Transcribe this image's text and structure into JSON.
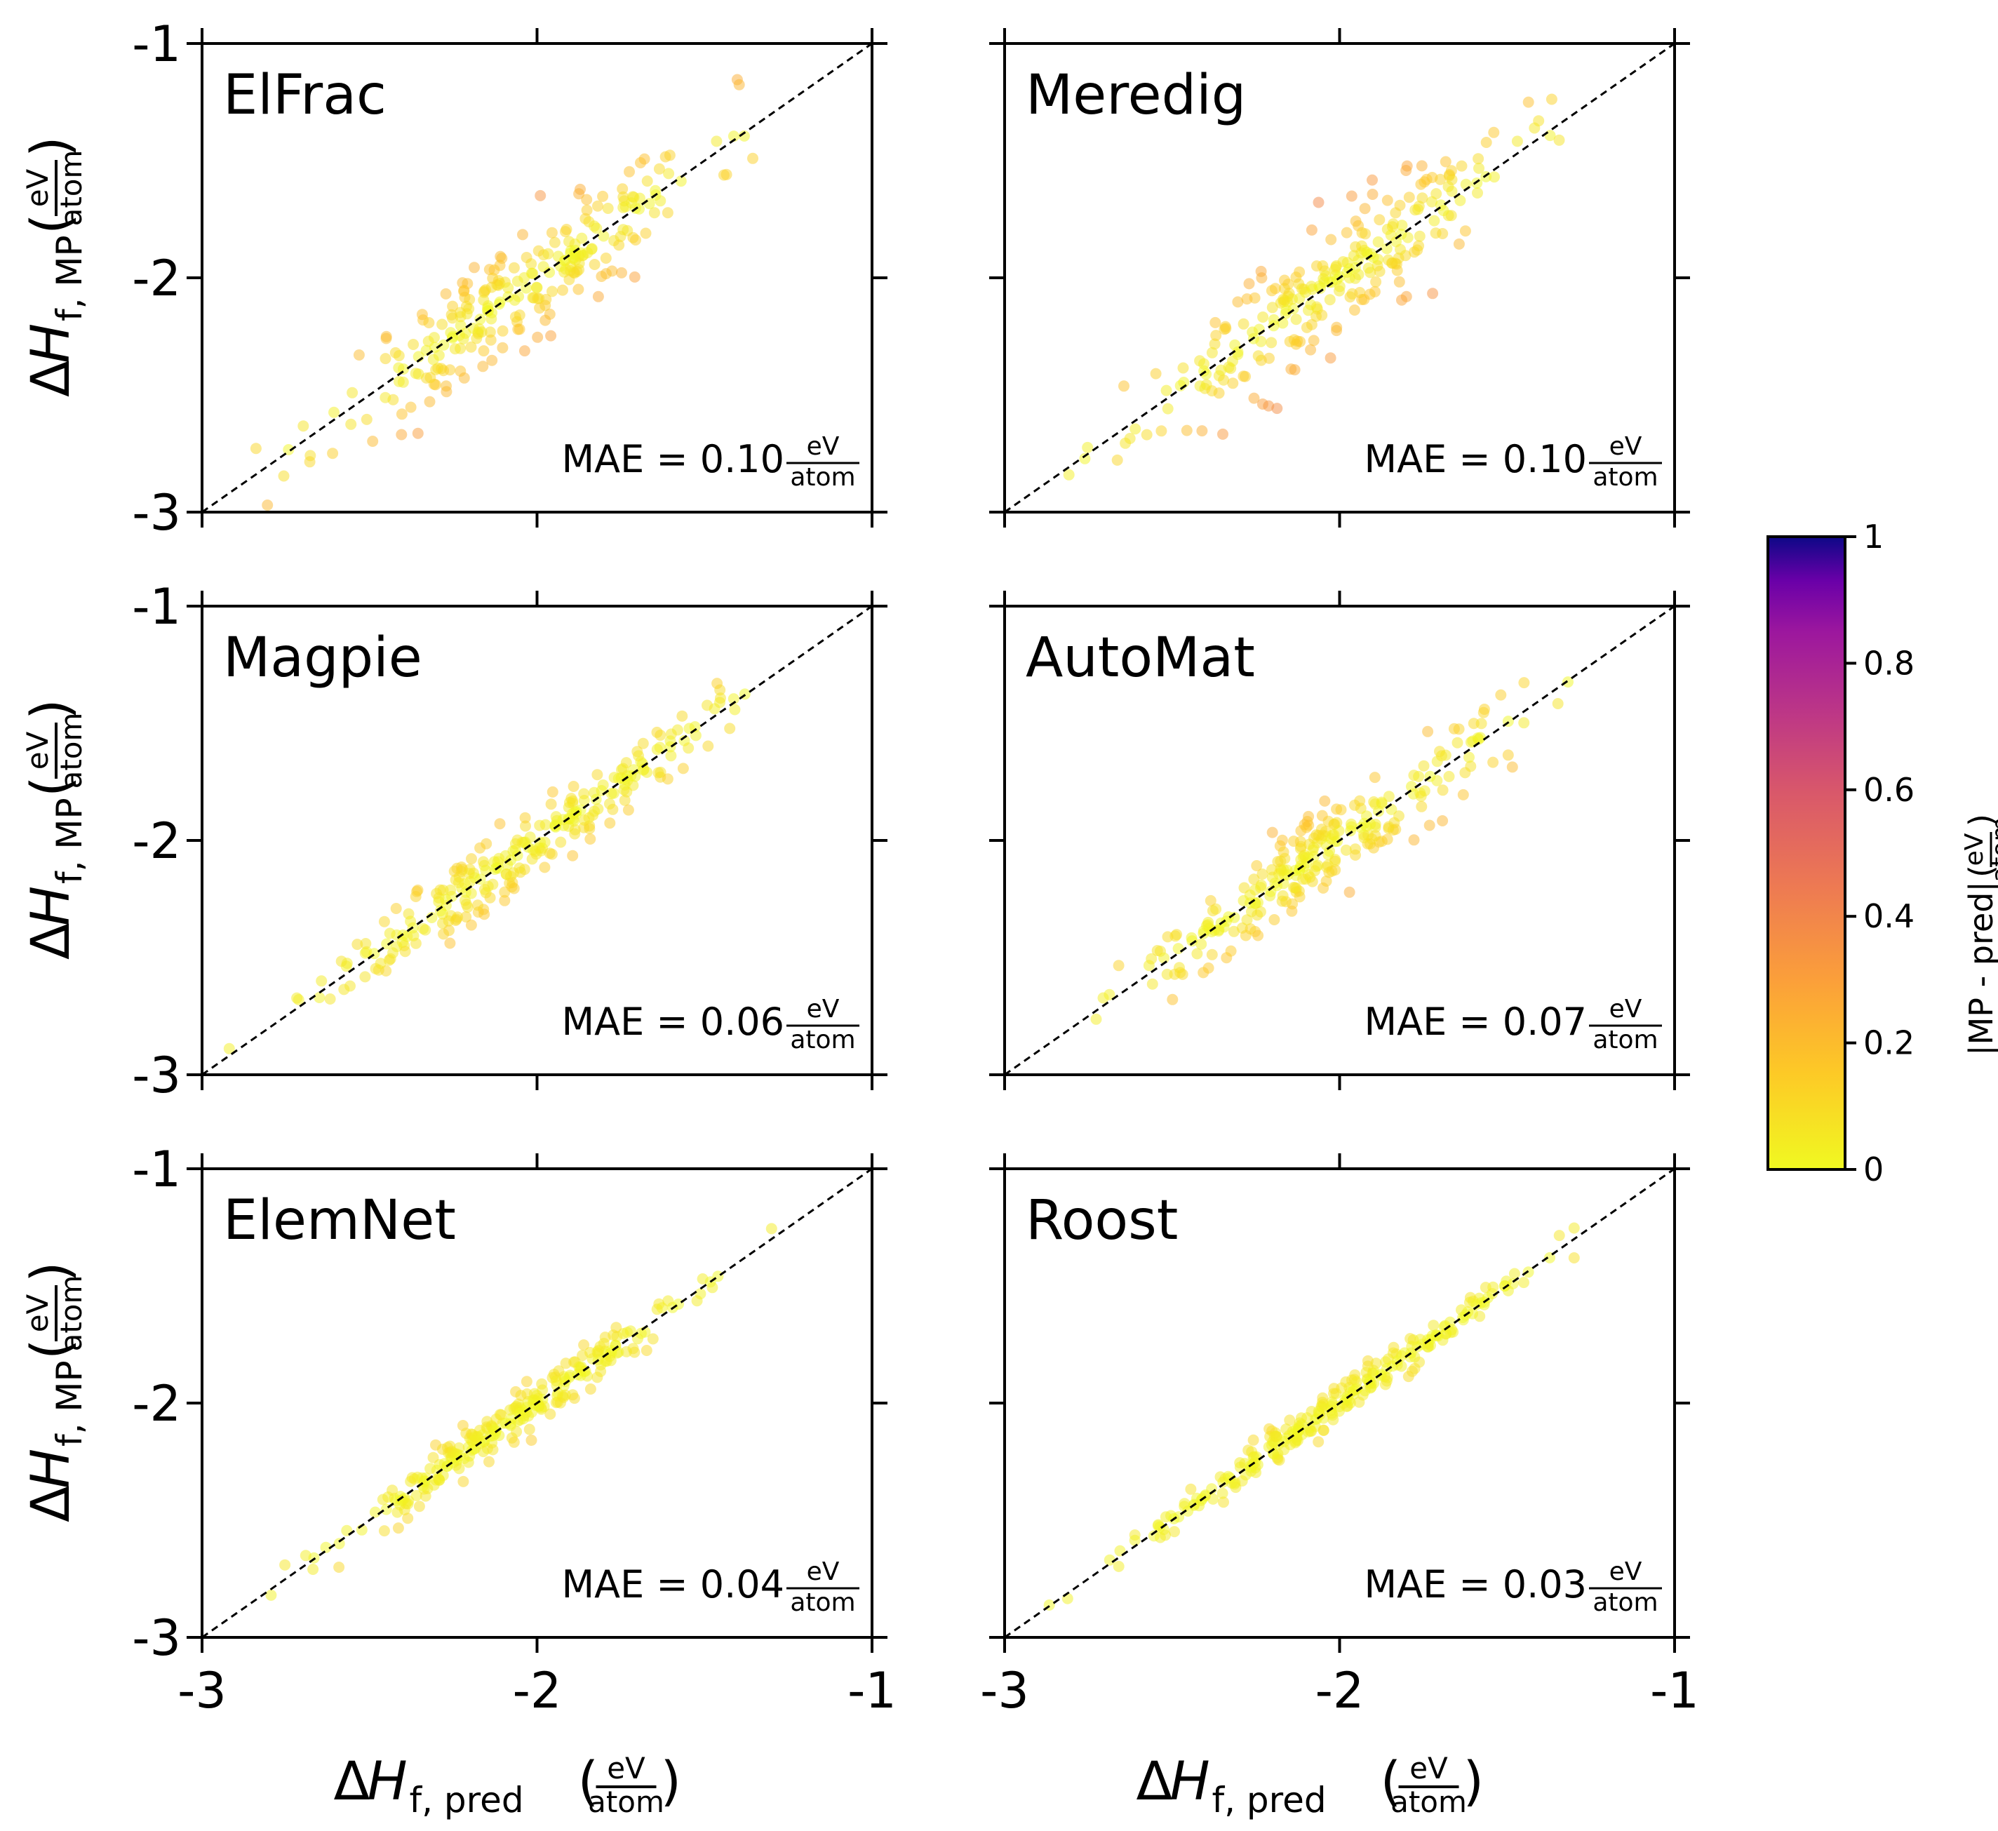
{
  "colorbar": {
    "ticks": [
      "0",
      "0.2",
      "0.4",
      "0.6",
      "0.8",
      "1"
    ],
    "label": "|MP - pred|",
    "colormap": "plasma",
    "range": [
      0,
      1
    ]
  },
  "x_axis_label": {
    "main": "ΔH",
    "sub": "f, pred",
    "unit_num": "eV",
    "unit_den": "atom"
  },
  "y_axis_label": {
    "main": "ΔH",
    "sub": "f, MP",
    "unit_num": "eV",
    "unit_den": "atom"
  },
  "mae_unit": {
    "num": "eV",
    "den": "atom"
  },
  "chart_data": [
    {
      "type": "scatter",
      "title": "ElFrac",
      "mae_text": "MAE = 0.10",
      "xlim": [
        -3,
        -1
      ],
      "ylim": [
        -3,
        -1
      ],
      "xticks": [
        "-3",
        "-2",
        "-1"
      ],
      "yticks": [
        "-3",
        "-2",
        "-1"
      ],
      "reference_line": "y = x",
      "spread": 0.1,
      "seed": 11
    },
    {
      "type": "scatter",
      "title": "Meredig",
      "mae_text": "MAE = 0.10",
      "xlim": [
        -3,
        -1
      ],
      "ylim": [
        -3,
        -1
      ],
      "xticks": [
        "-3",
        "-2",
        "-1"
      ],
      "yticks": [
        "-3",
        "-2",
        "-1"
      ],
      "reference_line": "y = x",
      "spread": 0.1,
      "seed": 23
    },
    {
      "type": "scatter",
      "title": "Magpie",
      "mae_text": "MAE = 0.06",
      "xlim": [
        -3,
        -1
      ],
      "ylim": [
        -3,
        -1
      ],
      "xticks": [
        "-3",
        "-2",
        "-1"
      ],
      "yticks": [
        "-3",
        "-2",
        "-1"
      ],
      "reference_line": "y = x",
      "spread": 0.06,
      "seed": 37
    },
    {
      "type": "scatter",
      "title": "AutoMat",
      "mae_text": "MAE = 0.07",
      "xlim": [
        -3,
        -1
      ],
      "ylim": [
        -3,
        -1
      ],
      "xticks": [
        "-3",
        "-2",
        "-1"
      ],
      "yticks": [
        "-3",
        "-2",
        "-1"
      ],
      "reference_line": "y = x",
      "spread": 0.07,
      "seed": 41
    },
    {
      "type": "scatter",
      "title": "ElemNet",
      "mae_text": "MAE = 0.04",
      "xlim": [
        -3,
        -1
      ],
      "ylim": [
        -3,
        -1
      ],
      "xticks": [
        "-3",
        "-2",
        "-1"
      ],
      "yticks": [
        "-3",
        "-2",
        "-1"
      ],
      "reference_line": "y = x",
      "spread": 0.04,
      "seed": 53
    },
    {
      "type": "scatter",
      "title": "Roost",
      "mae_text": "MAE = 0.03",
      "xlim": [
        -3,
        -1
      ],
      "ylim": [
        -3,
        -1
      ],
      "xticks": [
        "-3",
        "-2",
        "-1"
      ],
      "yticks": [
        "-3",
        "-2",
        "-1"
      ],
      "reference_line": "y = x",
      "spread": 0.03,
      "seed": 67
    }
  ]
}
